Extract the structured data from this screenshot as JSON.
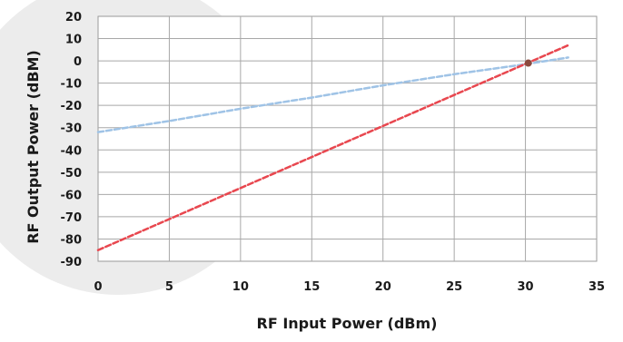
{
  "chart_data": {
    "type": "line",
    "title": "",
    "xlabel": "RF Input Power (dBm)",
    "ylabel": "RF Output Power (dBM)",
    "xlim": [
      0,
      35
    ],
    "ylim": [
      -90,
      20
    ],
    "x_ticks": [
      "0",
      "5",
      "10",
      "15",
      "20",
      "25",
      "30",
      "35"
    ],
    "y_ticks": [
      "20",
      "10",
      "0",
      "-10",
      "-20",
      "-30",
      "-40",
      "-50",
      "-60",
      "-70",
      "-80",
      "-90"
    ],
    "grid": true,
    "legend": "none",
    "series": [
      {
        "color": "#9fc3e6",
        "dashed": true,
        "points": [
          [
            0,
            -32
          ],
          [
            2,
            -30
          ],
          [
            5,
            -27
          ],
          [
            10,
            -21.5
          ],
          [
            15,
            -16.5
          ],
          [
            20,
            -11
          ],
          [
            25,
            -6
          ],
          [
            30,
            -1.5
          ],
          [
            33,
            1.5
          ]
        ]
      },
      {
        "color": "#e8474f",
        "dashed": true,
        "points": [
          [
            0,
            -85
          ],
          [
            33,
            7
          ]
        ]
      }
    ],
    "marker": {
      "x": 30.2,
      "y": -1,
      "color": "#8b4a3e"
    }
  }
}
